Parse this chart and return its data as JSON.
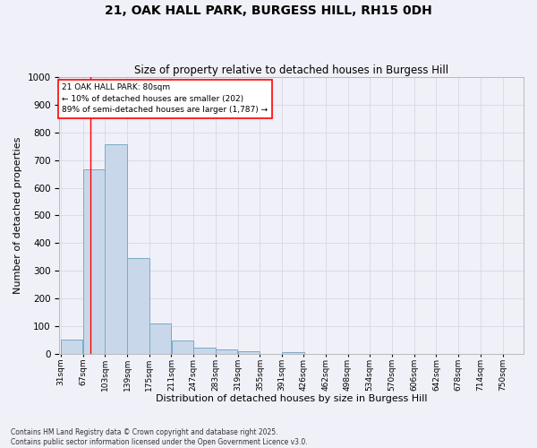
{
  "title1": "21, OAK HALL PARK, BURGESS HILL, RH15 0DH",
  "title2": "Size of property relative to detached houses in Burgess Hill",
  "xlabel": "Distribution of detached houses by size in Burgess Hill",
  "ylabel": "Number of detached properties",
  "bin_labels": [
    "31sqm",
    "67sqm",
    "103sqm",
    "139sqm",
    "175sqm",
    "211sqm",
    "247sqm",
    "283sqm",
    "319sqm",
    "355sqm",
    "391sqm",
    "426sqm",
    "462sqm",
    "498sqm",
    "534sqm",
    "570sqm",
    "606sqm",
    "642sqm",
    "678sqm",
    "714sqm",
    "750sqm"
  ],
  "bin_left_edges": [
    31,
    67,
    103,
    139,
    175,
    211,
    247,
    283,
    319,
    355,
    391,
    426,
    462,
    498,
    534,
    570,
    606,
    642,
    678,
    714
  ],
  "bar_heights": [
    52,
    665,
    757,
    345,
    110,
    49,
    25,
    17,
    10,
    0,
    7,
    0,
    0,
    0,
    0,
    0,
    0,
    0,
    0,
    0
  ],
  "bar_color": "#c8d8ea",
  "bar_edge_color": "#7aaac8",
  "property_size": 80,
  "red_line_x": 80,
  "annotation_line1": "21 OAK HALL PARK: 80sqm",
  "annotation_line2": "← 10% of detached houses are smaller (202)",
  "annotation_line3": "89% of semi-detached houses are larger (1,787) →",
  "ylim": [
    0,
    1000
  ],
  "yticks": [
    0,
    100,
    200,
    300,
    400,
    500,
    600,
    700,
    800,
    900,
    1000
  ],
  "grid_color": "#d8d8e8",
  "background_color": "#f0f0f8",
  "footer1": "Contains HM Land Registry data © Crown copyright and database right 2025.",
  "footer2": "Contains public sector information licensed under the Open Government Licence v3.0."
}
